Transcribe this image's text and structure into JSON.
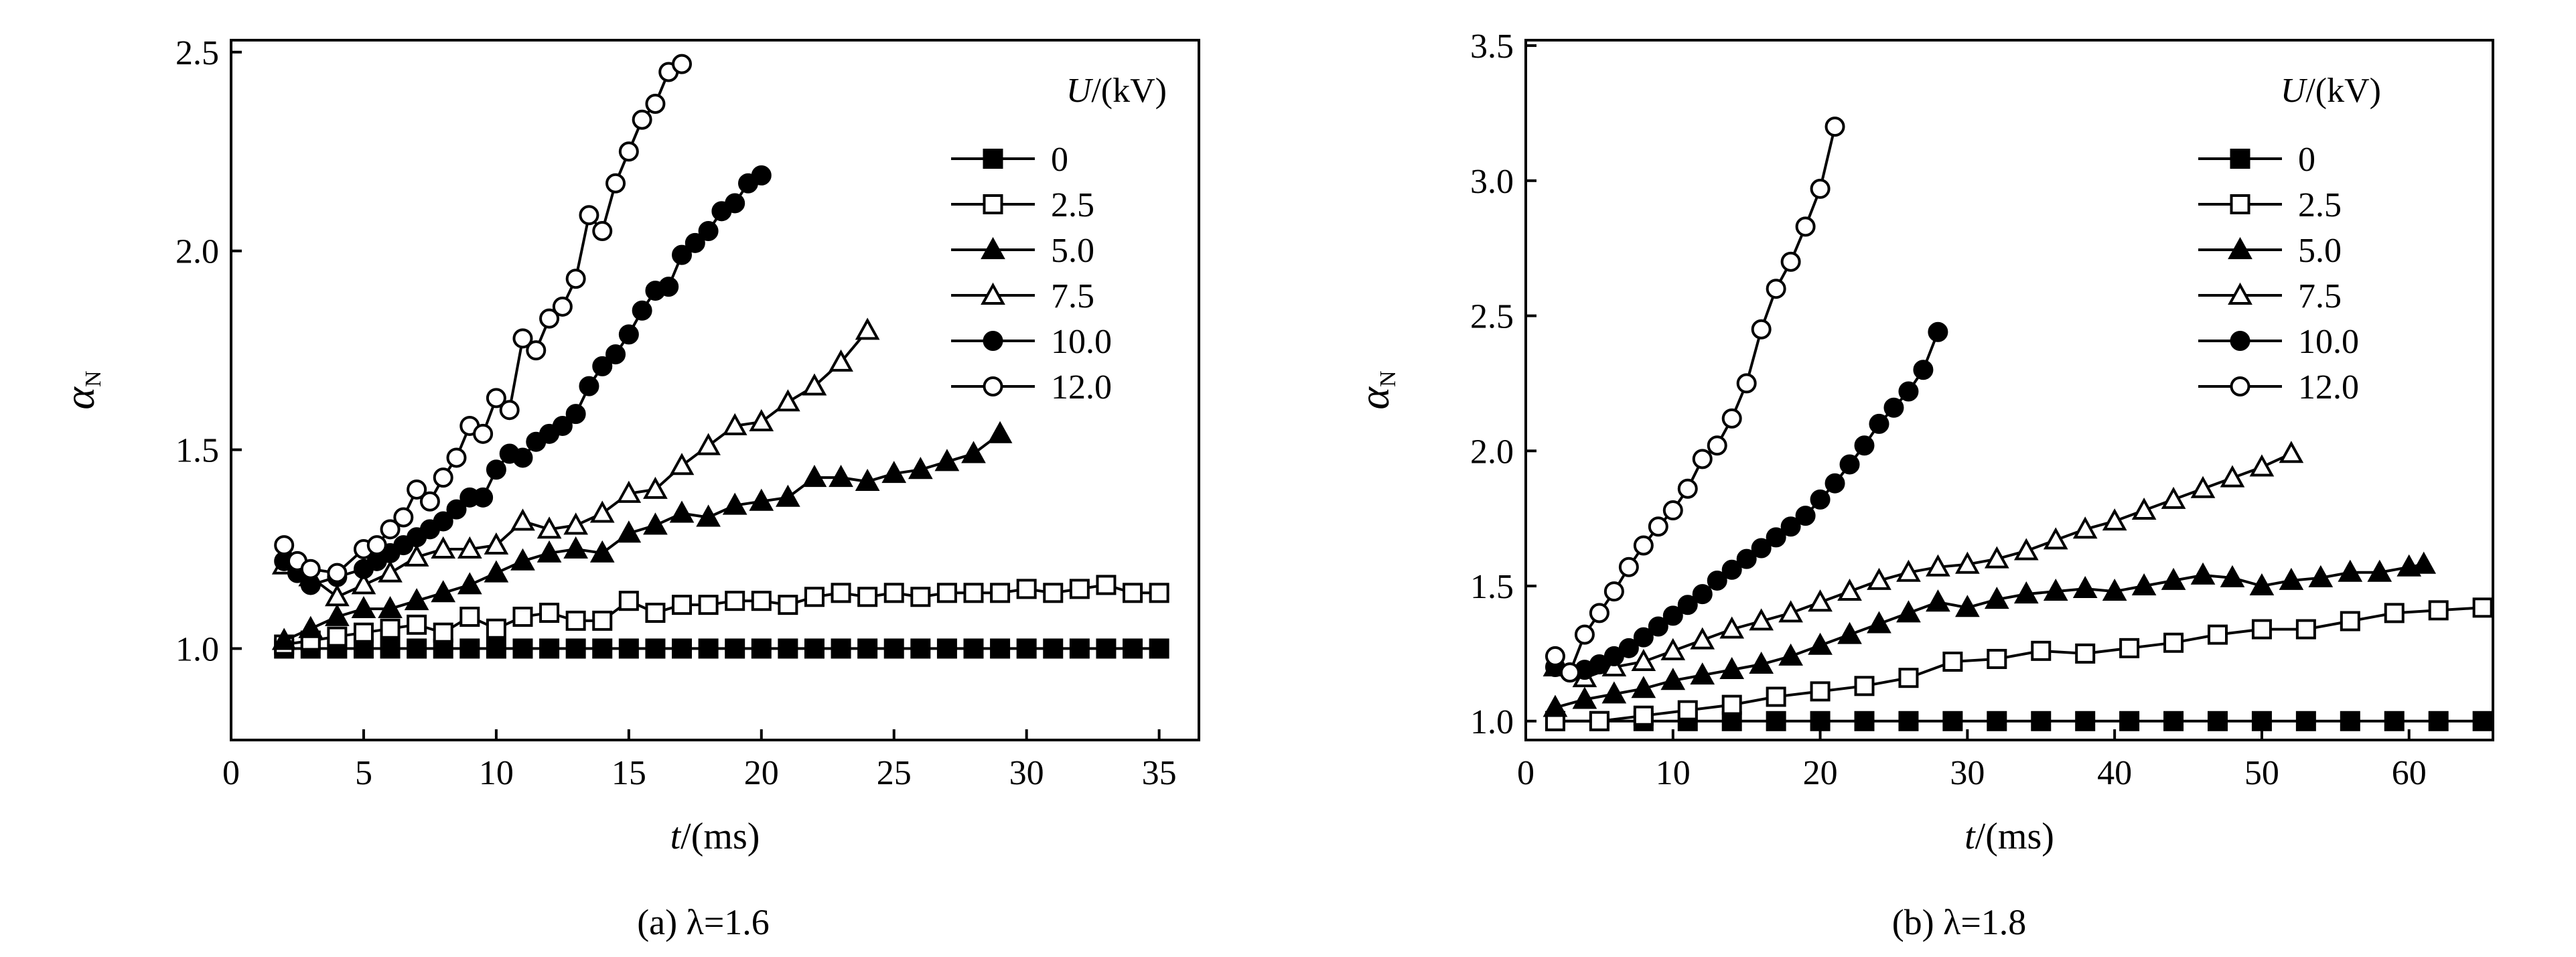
{
  "figure": {
    "caption_a": "(a) λ=1.6",
    "caption_b": "(b) λ=1.8"
  },
  "chart_data": [
    {
      "type": "line",
      "panel": "a",
      "title": "",
      "caption": "(a) λ=1.6",
      "xlabel": "t/(ms)",
      "ylabel": "αN",
      "xlim": [
        0,
        36.5
      ],
      "ylim": [
        0.77,
        2.53
      ],
      "xticks": [
        0,
        5,
        10,
        15,
        20,
        25,
        30,
        35
      ],
      "xtick_labels": [
        "0",
        "5",
        "10",
        "15",
        "20",
        "25",
        "30",
        "35"
      ],
      "yticks": [
        1.0,
        1.5,
        2.0,
        2.5
      ],
      "ytick_labels": [
        "1.0",
        "1.5",
        "2.0",
        "2.5"
      ],
      "legend_title": "U/(kV)",
      "legend_position": "top-right",
      "grid": false,
      "series": [
        {
          "name": "0",
          "marker": "square",
          "filled": true,
          "x": [
            2,
            3,
            4,
            5,
            6,
            7,
            8,
            9,
            10,
            11,
            12,
            13,
            14,
            15,
            16,
            17,
            18,
            19,
            20,
            21,
            22,
            23,
            24,
            25,
            26,
            27,
            28,
            29,
            30,
            31,
            32,
            33,
            34,
            35
          ],
          "y": [
            1,
            1,
            1,
            1,
            1,
            1,
            1,
            1,
            1,
            1,
            1,
            1,
            1,
            1,
            1,
            1,
            1,
            1,
            1,
            1,
            1,
            1,
            1,
            1,
            1,
            1,
            1,
            1,
            1,
            1,
            1,
            1,
            1,
            1
          ]
        },
        {
          "name": "2.5",
          "marker": "square",
          "filled": false,
          "x": [
            2,
            3,
            4,
            5,
            6,
            7,
            8,
            9,
            10,
            11,
            12,
            13,
            14,
            15,
            16,
            17,
            18,
            19,
            20,
            21,
            22,
            23,
            24,
            25,
            26,
            27,
            28,
            29,
            30,
            31,
            32,
            33,
            34,
            35
          ],
          "y": [
            1.01,
            1.02,
            1.03,
            1.04,
            1.05,
            1.06,
            1.04,
            1.08,
            1.05,
            1.08,
            1.09,
            1.07,
            1.07,
            1.12,
            1.09,
            1.11,
            1.11,
            1.12,
            1.12,
            1.11,
            1.13,
            1.14,
            1.13,
            1.14,
            1.13,
            1.14,
            1.14,
            1.14,
            1.15,
            1.14,
            1.15,
            1.16,
            1.14,
            1.14
          ]
        },
        {
          "name": "5.0",
          "marker": "triangle",
          "filled": true,
          "x": [
            2,
            3,
            4,
            5,
            6,
            7,
            8,
            9,
            10,
            11,
            12,
            13,
            14,
            15,
            16,
            17,
            18,
            19,
            20,
            21,
            22,
            23,
            24,
            25,
            26,
            27,
            28,
            29
          ],
          "y": [
            1.02,
            1.05,
            1.08,
            1.1,
            1.1,
            1.12,
            1.14,
            1.16,
            1.19,
            1.22,
            1.24,
            1.25,
            1.24,
            1.29,
            1.31,
            1.34,
            1.33,
            1.36,
            1.37,
            1.38,
            1.43,
            1.43,
            1.42,
            1.44,
            1.45,
            1.47,
            1.49,
            1.54
          ]
        },
        {
          "name": "7.5",
          "marker": "triangle",
          "filled": false,
          "x": [
            2,
            3,
            4,
            5,
            6,
            7,
            8,
            9,
            10,
            11,
            12,
            13,
            14,
            15,
            16,
            17,
            18,
            19,
            20,
            21,
            22,
            23,
            24
          ],
          "y": [
            1.21,
            1.18,
            1.13,
            1.16,
            1.19,
            1.23,
            1.25,
            1.25,
            1.26,
            1.32,
            1.3,
            1.31,
            1.34,
            1.39,
            1.4,
            1.46,
            1.51,
            1.56,
            1.57,
            1.62,
            1.66,
            1.72,
            1.8
          ]
        },
        {
          "name": "10.0",
          "marker": "circle",
          "filled": true,
          "x": [
            2,
            2.5,
            3,
            4,
            5,
            5.5,
            6,
            6.5,
            7,
            7.5,
            8,
            8.5,
            9,
            9.5,
            10,
            10.5,
            11,
            11.5,
            12,
            12.5,
            13,
            13.5,
            14,
            14.5,
            15,
            15.5,
            16,
            16.5,
            17,
            17.5,
            18,
            18.5,
            19,
            19.5,
            20
          ],
          "y": [
            1.22,
            1.19,
            1.16,
            1.18,
            1.2,
            1.22,
            1.24,
            1.26,
            1.28,
            1.3,
            1.32,
            1.35,
            1.38,
            1.38,
            1.45,
            1.49,
            1.48,
            1.52,
            1.54,
            1.56,
            1.59,
            1.66,
            1.71,
            1.74,
            1.79,
            1.85,
            1.9,
            1.91,
            1.99,
            2.02,
            2.05,
            2.1,
            2.12,
            2.17,
            2.19
          ]
        },
        {
          "name": "12.0",
          "marker": "circle",
          "filled": false,
          "x": [
            2,
            2.5,
            3,
            4,
            5,
            5.5,
            6,
            6.5,
            7,
            7.5,
            8,
            8.5,
            9,
            9.5,
            10,
            10.5,
            11,
            11.5,
            12,
            12.5,
            13,
            13.5,
            14,
            14.5,
            15,
            15.5,
            16,
            16.5,
            17
          ],
          "y": [
            1.26,
            1.22,
            1.2,
            1.19,
            1.25,
            1.26,
            1.3,
            1.33,
            1.4,
            1.37,
            1.43,
            1.48,
            1.56,
            1.54,
            1.63,
            1.6,
            1.78,
            1.75,
            1.83,
            1.86,
            1.93,
            2.09,
            2.05,
            2.17,
            2.25,
            2.33,
            2.37,
            2.45,
            2.47
          ]
        }
      ]
    },
    {
      "type": "line",
      "panel": "b",
      "title": "",
      "caption": "(b) λ=1.8",
      "xlabel": "t/(ms)",
      "ylabel": "αN",
      "xlim": [
        0,
        65.7
      ],
      "ylim": [
        0.93,
        3.52
      ],
      "xticks": [
        0,
        10,
        20,
        30,
        40,
        50,
        60
      ],
      "xtick_labels": [
        "0",
        "10",
        "20",
        "30",
        "40",
        "50",
        "60"
      ],
      "yticks": [
        1.0,
        1.5,
        2.0,
        2.5,
        3.0,
        3.5
      ],
      "ytick_labels": [
        "1.0",
        "1.5",
        "2.0",
        "2.5",
        "3.0",
        "3.5"
      ],
      "legend_title": "U/(kV)",
      "legend_position": "top-right",
      "grid": false,
      "series": [
        {
          "name": "0",
          "marker": "square",
          "filled": true,
          "x": [
            2,
            5,
            8,
            11,
            14,
            17,
            20,
            23,
            26,
            29,
            32,
            35,
            38,
            41,
            44,
            47,
            50,
            53,
            56,
            59,
            62,
            65
          ],
          "y": [
            1,
            1,
            1,
            1,
            1,
            1,
            1,
            1,
            1,
            1,
            1,
            1,
            1,
            1,
            1,
            1,
            1,
            1,
            1,
            1,
            1,
            1
          ]
        },
        {
          "name": "2.5",
          "marker": "square",
          "filled": false,
          "x": [
            2,
            5,
            8,
            11,
            14,
            17,
            20,
            23,
            26,
            29,
            32,
            35,
            38,
            41,
            44,
            47,
            50,
            53,
            56,
            59,
            62,
            65
          ],
          "y": [
            1.0,
            1.0,
            1.02,
            1.04,
            1.06,
            1.09,
            1.11,
            1.13,
            1.16,
            1.22,
            1.23,
            1.26,
            1.25,
            1.27,
            1.29,
            1.32,
            1.34,
            1.34,
            1.37,
            1.4,
            1.41,
            1.42
          ]
        },
        {
          "name": "5.0",
          "marker": "triangle",
          "filled": true,
          "x": [
            2,
            4,
            6,
            8,
            10,
            12,
            14,
            16,
            18,
            20,
            22,
            24,
            26,
            28,
            30,
            32,
            34,
            36,
            38,
            40,
            42,
            44,
            46,
            48,
            50,
            52,
            54,
            56,
            58,
            60,
            61
          ],
          "y": [
            1.05,
            1.08,
            1.1,
            1.12,
            1.15,
            1.17,
            1.19,
            1.21,
            1.24,
            1.28,
            1.32,
            1.36,
            1.4,
            1.44,
            1.42,
            1.45,
            1.47,
            1.48,
            1.49,
            1.48,
            1.5,
            1.52,
            1.54,
            1.53,
            1.5,
            1.52,
            1.53,
            1.55,
            1.55,
            1.57,
            1.58
          ]
        },
        {
          "name": "7.5",
          "marker": "triangle",
          "filled": false,
          "x": [
            2,
            4,
            6,
            8,
            10,
            12,
            14,
            16,
            18,
            20,
            22,
            24,
            26,
            28,
            30,
            32,
            34,
            36,
            38,
            40,
            42,
            44,
            46,
            48,
            50,
            52
          ],
          "y": [
            1.2,
            1.16,
            1.2,
            1.22,
            1.26,
            1.3,
            1.34,
            1.37,
            1.4,
            1.44,
            1.48,
            1.52,
            1.55,
            1.57,
            1.58,
            1.6,
            1.63,
            1.67,
            1.71,
            1.74,
            1.78,
            1.82,
            1.86,
            1.9,
            1.94,
            1.99
          ]
        },
        {
          "name": "10.0",
          "marker": "circle",
          "filled": true,
          "x": [
            2,
            3,
            4,
            5,
            6,
            7,
            8,
            9,
            10,
            11,
            12,
            13,
            14,
            15,
            16,
            17,
            18,
            19,
            20,
            21,
            22,
            23,
            24,
            25,
            26,
            27,
            28
          ],
          "y": [
            1.2,
            1.18,
            1.19,
            1.21,
            1.24,
            1.27,
            1.31,
            1.35,
            1.39,
            1.43,
            1.47,
            1.52,
            1.56,
            1.6,
            1.64,
            1.68,
            1.72,
            1.76,
            1.82,
            1.88,
            1.95,
            2.02,
            2.1,
            2.16,
            2.22,
            2.3,
            2.44
          ]
        },
        {
          "name": "12.0",
          "marker": "circle",
          "filled": false,
          "x": [
            2,
            3,
            4,
            5,
            6,
            7,
            8,
            9,
            10,
            11,
            12,
            13,
            14,
            15,
            16,
            17,
            18,
            19,
            20,
            21
          ],
          "y": [
            1.24,
            1.18,
            1.32,
            1.4,
            1.48,
            1.57,
            1.65,
            1.72,
            1.78,
            1.86,
            1.97,
            2.02,
            2.12,
            2.25,
            2.45,
            2.6,
            2.7,
            2.83,
            2.97,
            3.2
          ]
        }
      ]
    }
  ]
}
